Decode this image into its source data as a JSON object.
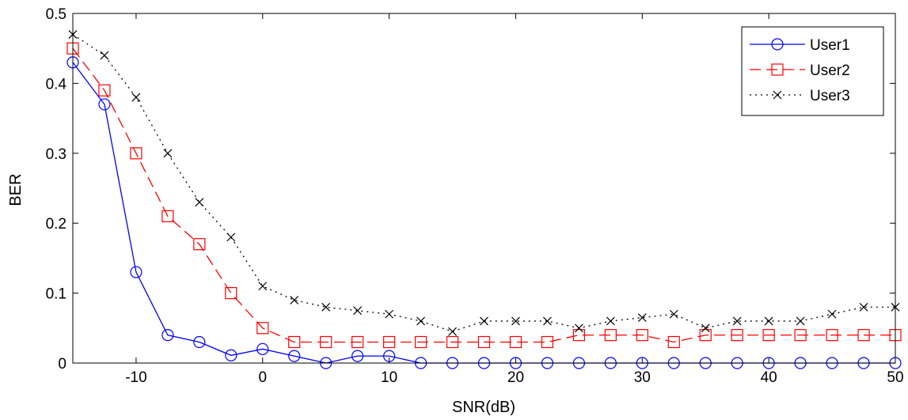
{
  "chart_data": {
    "type": "line",
    "title": "",
    "xlabel": "SNR(dB)",
    "ylabel": "BER",
    "xlim": [
      -15,
      50
    ],
    "ylim": [
      0,
      0.5
    ],
    "xticks": [
      -10,
      0,
      10,
      20,
      30,
      40,
      50
    ],
    "xtick_labels": [
      "-10",
      "0",
      "10",
      "20",
      "30",
      "40",
      "50"
    ],
    "yticks": [
      0,
      0.1,
      0.2,
      0.3,
      0.4,
      0.5
    ],
    "ytick_labels": [
      "0",
      "0.1",
      "0.2",
      "0.3",
      "0.4",
      "0.5"
    ],
    "grid": false,
    "legend_position": "top-right",
    "x": [
      -15,
      -12.5,
      -10,
      -7.5,
      -5,
      -2.5,
      0,
      2.5,
      5,
      7.5,
      10,
      12.5,
      15,
      17.5,
      20,
      22.5,
      25,
      27.5,
      30,
      32.5,
      35,
      37.5,
      40,
      42.5,
      45,
      47.5,
      50
    ],
    "series": [
      {
        "name": "User1",
        "color": "#0000ff",
        "line_style": "solid",
        "marker": "circle",
        "values": [
          0.43,
          0.37,
          0.13,
          0.04,
          0.03,
          0.011,
          0.02,
          0.01,
          0.0,
          0.01,
          0.01,
          0.0,
          0.0,
          0.0,
          0.0,
          0.0,
          0.0,
          0.0,
          0.0,
          0.0,
          0.0,
          0.0,
          0.0,
          0.0,
          0.0,
          0.0,
          0.0
        ]
      },
      {
        "name": "User2",
        "color": "#ff0000",
        "line_style": "dashed",
        "marker": "square",
        "values": [
          0.45,
          0.39,
          0.3,
          0.21,
          0.17,
          0.1,
          0.05,
          0.03,
          0.03,
          0.03,
          0.03,
          0.03,
          0.03,
          0.03,
          0.03,
          0.03,
          0.04,
          0.04,
          0.04,
          0.03,
          0.04,
          0.04,
          0.04,
          0.04,
          0.04,
          0.04,
          0.04
        ]
      },
      {
        "name": "User3",
        "color": "#000000",
        "line_style": "dotted",
        "marker": "x",
        "values": [
          0.47,
          0.44,
          0.38,
          0.3,
          0.23,
          0.18,
          0.11,
          0.09,
          0.08,
          0.075,
          0.07,
          0.06,
          0.045,
          0.06,
          0.06,
          0.06,
          0.05,
          0.06,
          0.065,
          0.07,
          0.05,
          0.06,
          0.06,
          0.06,
          0.07,
          0.08,
          0.08
        ]
      }
    ]
  }
}
